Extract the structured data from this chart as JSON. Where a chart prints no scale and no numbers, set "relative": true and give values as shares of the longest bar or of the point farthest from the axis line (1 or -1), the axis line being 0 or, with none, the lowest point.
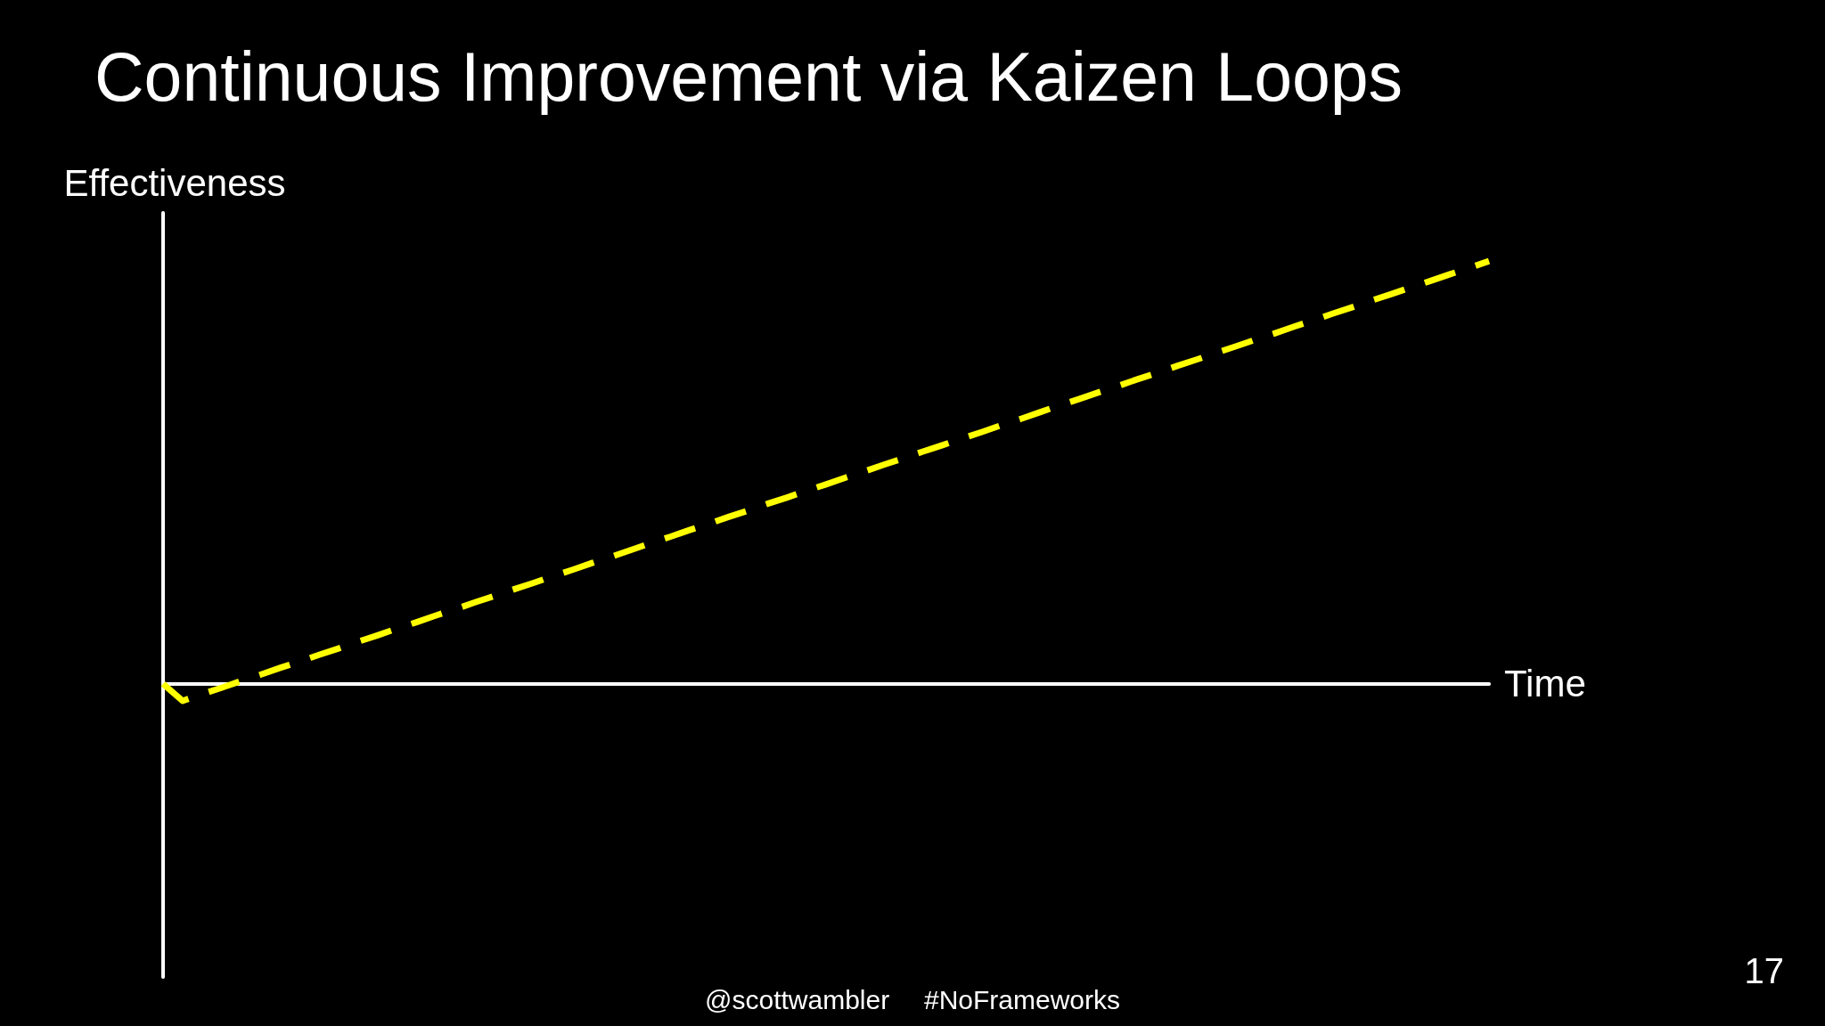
{
  "chart_data": {
    "type": "line",
    "title": "Continuous Improvement via Kaizen Loops",
    "xlabel": "Time",
    "ylabel": "Effectiveness",
    "annotations": [
      "@scottwambler",
      "#NoFrameworks",
      "17"
    ],
    "relative": true,
    "marker": "none",
    "line_style": "dashed",
    "color": "#ffff00",
    "categories": [
      null,
      null,
      null,
      null,
      null,
      null,
      null,
      null,
      null,
      null,
      null,
      null,
      null,
      null,
      null,
      null,
      null,
      null,
      null,
      null,
      null,
      null,
      null,
      null,
      null,
      null,
      null,
      null,
      null,
      null,
      null,
      null,
      null,
      null,
      null,
      null,
      null,
      null,
      null,
      null,
      null,
      null,
      null,
      null,
      null,
      null,
      null,
      null,
      null,
      null,
      null,
      null,
      null,
      null,
      null,
      null,
      null,
      null,
      null,
      null,
      null,
      null,
      null,
      null,
      null,
      null,
      null,
      null,
      null
    ],
    "values": [
      0,
      -0.04,
      -0.024,
      -0.009,
      0.007,
      0.022,
      0.038,
      0.053,
      0.069,
      0.084,
      0.1,
      0.115,
      0.131,
      0.146,
      0.162,
      0.177,
      0.193,
      0.208,
      0.224,
      0.239,
      0.255,
      0.27,
      0.286,
      0.301,
      0.317,
      0.333,
      0.348,
      0.364,
      0.379,
      0.395,
      0.41,
      0.426,
      0.441,
      0.457,
      0.472,
      0.488,
      0.503,
      0.519,
      0.534,
      0.55,
      0.565,
      0.581,
      0.596,
      0.612,
      0.627,
      0.643,
      0.659,
      0.674,
      0.69,
      0.705,
      0.721,
      0.736,
      0.752,
      0.767,
      0.783,
      0.798,
      0.814,
      0.829,
      0.845,
      0.86,
      0.876,
      0.891,
      0.907,
      0.922,
      0.938,
      0.953,
      0.969,
      0.984,
      1
    ]
  }
}
